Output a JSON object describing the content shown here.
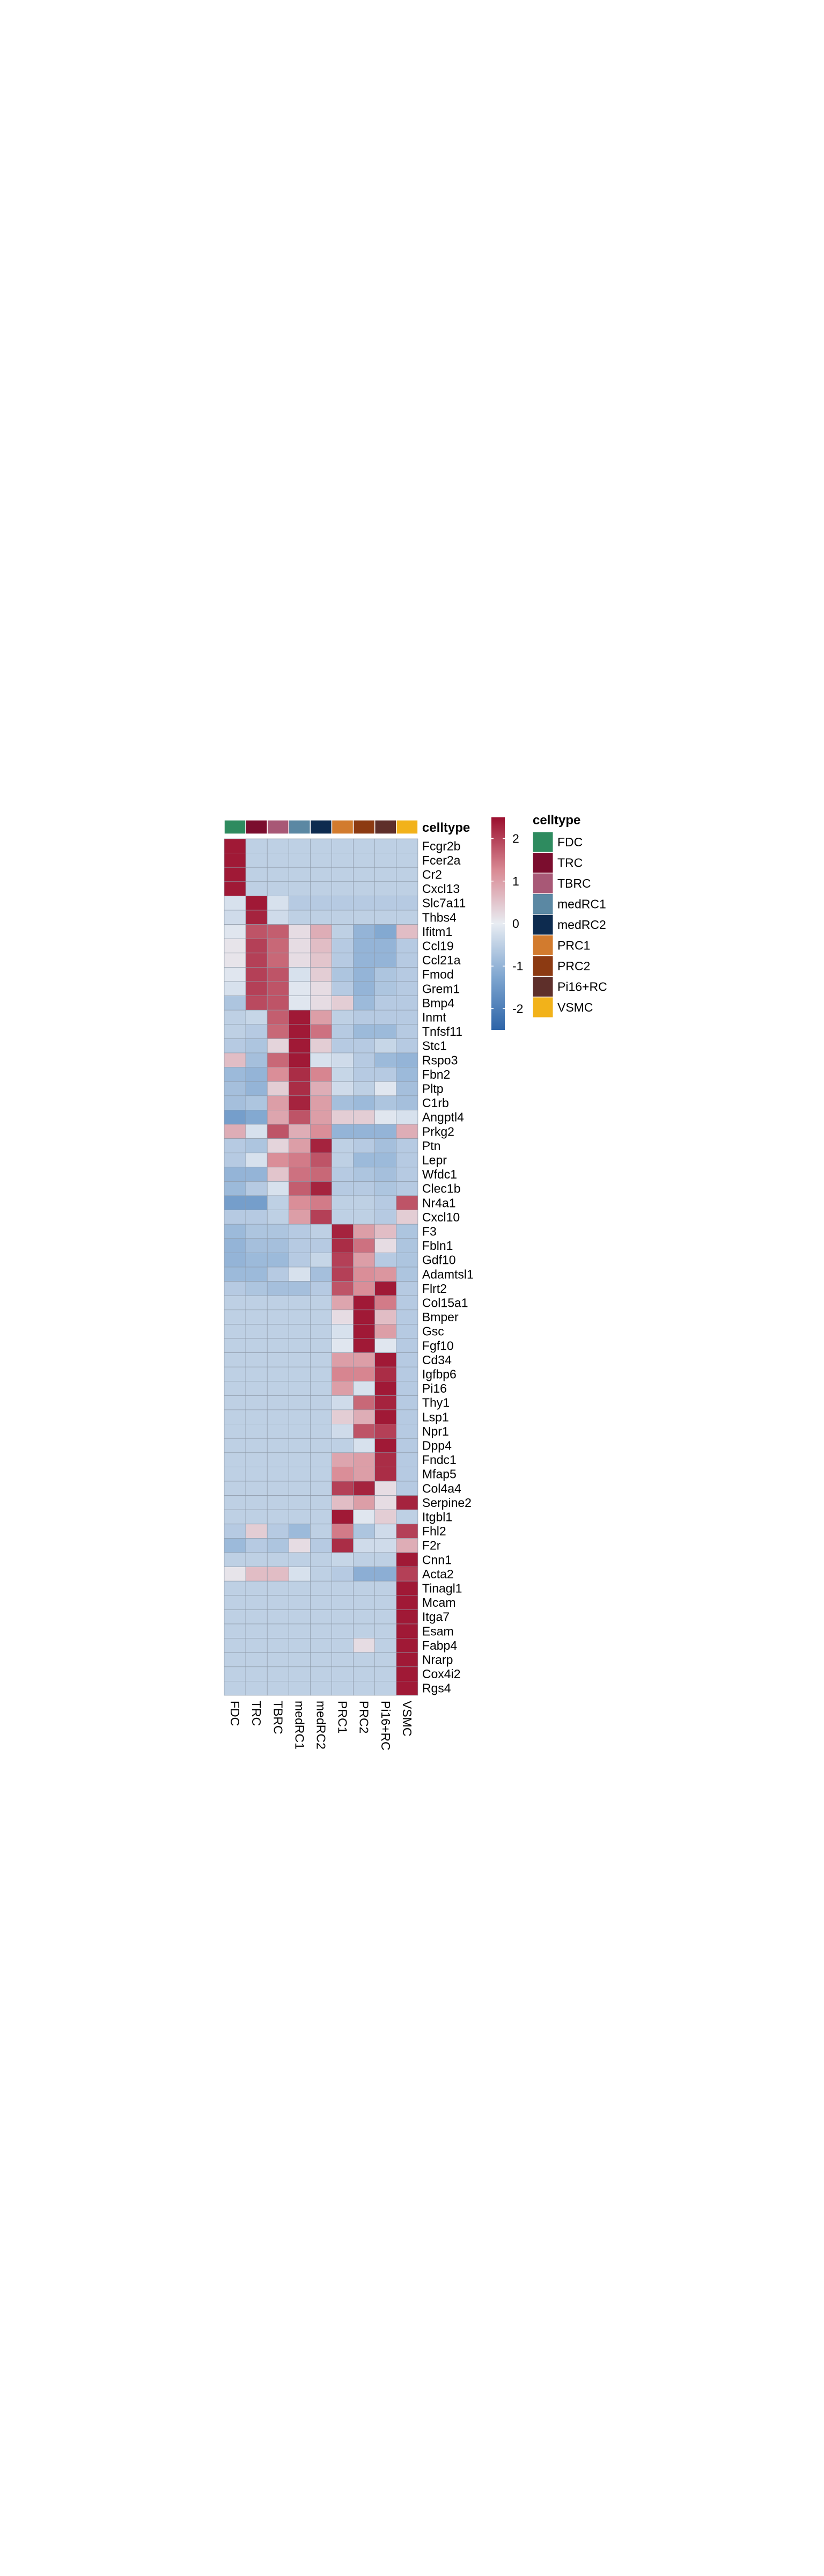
{
  "chart_data": {
    "type": "heatmap",
    "title": "",
    "xlabel": "",
    "ylabel": "",
    "celltypes": [
      "FDC",
      "TRC",
      "TBRC",
      "medRC1",
      "medRC2",
      "PRC1",
      "PRC2",
      "Pi16+RC",
      "VSMC"
    ],
    "annotation_title": "celltype",
    "annotation_colors": [
      "#2E8B5F",
      "#7B0D2E",
      "#A85876",
      "#5B88A3",
      "#0D2B4F",
      "#D27B2E",
      "#8C3A12",
      "#5E2F2A",
      "#F2B21A"
    ],
    "colorbar": {
      "ticks": [
        2,
        1,
        0,
        -1,
        -2
      ],
      "tick_labels": [
        "2",
        "1",
        "0",
        "-1",
        "-2"
      ],
      "range": [
        -2.5,
        2.5
      ],
      "colors": [
        "#2D64A8",
        "#7FA6D0",
        "#E8ECF2",
        "#D98A94",
        "#9B0F2E"
      ]
    },
    "genes": [
      "Fcgr2b",
      "Fcer2a",
      "Cr2",
      "Cxcl13",
      "Slc7a11",
      "Thbs4",
      "Ifitm1",
      "Ccl19",
      "Ccl21a",
      "Fmod",
      "Grem1",
      "Bmp4",
      "Inmt",
      "Tnfsf11",
      "Stc1",
      "Rspo3",
      "Fbn2",
      "Pltp",
      "C1rb",
      "Angptl4",
      "Prkg2",
      "Ptn",
      "Lepr",
      "Wfdc1",
      "Clec1b",
      "Nr4a1",
      "Cxcl10",
      "F3",
      "Fbln1",
      "Gdf10",
      "Adamtsl1",
      "Flrt2",
      "Col15a1",
      "Bmper",
      "Gsc",
      "Fgf10",
      "Cd34",
      "Igfbp6",
      "Pi16",
      "Thy1",
      "Lsp1",
      "Npr1",
      "Dpp4",
      "Fndc1",
      "Mfap5",
      "Col4a4",
      "Serpine2",
      "Itgbl1",
      "Fhl2",
      "F2r",
      "Cnn1",
      "Acta2",
      "Tinagl1",
      "Mcam",
      "Itga7",
      "Esam",
      "Fabp4",
      "Nrarp",
      "Cox4i2",
      "Rgs4"
    ],
    "values": [
      [
        2.4,
        -0.5,
        -0.5,
        -0.5,
        -0.5,
        -0.5,
        -0.5,
        -0.5,
        -0.5
      ],
      [
        2.4,
        -0.5,
        -0.5,
        -0.5,
        -0.5,
        -0.5,
        -0.5,
        -0.5,
        -0.5
      ],
      [
        2.4,
        -0.5,
        -0.5,
        -0.5,
        -0.5,
        -0.5,
        -0.5,
        -0.5,
        -0.5
      ],
      [
        2.4,
        -0.5,
        -0.5,
        -0.5,
        -0.5,
        -0.5,
        -0.5,
        -0.5,
        -0.5
      ],
      [
        -0.2,
        2.4,
        -0.2,
        -0.6,
        -0.6,
        -0.6,
        -0.6,
        -0.6,
        -0.6
      ],
      [
        -0.3,
        2.3,
        -0.3,
        -0.5,
        -0.5,
        -0.5,
        -0.5,
        -0.5,
        -0.5
      ],
      [
        -0.1,
        1.8,
        1.7,
        0.2,
        0.8,
        -0.5,
        -1.0,
        -1.2,
        0.6
      ],
      [
        0.1,
        2.0,
        1.6,
        0.2,
        0.6,
        -0.6,
        -1.0,
        -1.0,
        -0.6
      ],
      [
        0.1,
        2.0,
        1.6,
        0.2,
        0.5,
        -0.6,
        -1.0,
        -1.0,
        -0.6
      ],
      [
        -0.1,
        2.0,
        1.8,
        -0.2,
        0.4,
        -0.7,
        -1.0,
        -0.7,
        -0.6
      ],
      [
        -0.2,
        2.0,
        1.8,
        -0.1,
        0.2,
        -0.6,
        -1.0,
        -0.7,
        -0.6
      ],
      [
        -0.7,
        1.9,
        1.8,
        -0.1,
        0.2,
        0.4,
        -0.9,
        -0.6,
        -0.6
      ],
      [
        -0.5,
        -0.4,
        1.7,
        2.4,
        1.0,
        -0.5,
        -0.6,
        -0.6,
        -0.6
      ],
      [
        -0.5,
        -0.6,
        1.6,
        2.4,
        1.5,
        -0.6,
        -0.9,
        -0.9,
        -0.6
      ],
      [
        -0.6,
        -0.7,
        0.3,
        2.4,
        0.4,
        -0.6,
        -0.6,
        -0.4,
        -0.6
      ],
      [
        0.6,
        -0.8,
        1.6,
        2.4,
        -0.2,
        -0.3,
        -0.6,
        -0.9,
        -1.0
      ],
      [
        -0.9,
        -1.0,
        1.2,
        2.2,
        1.3,
        -0.4,
        -0.6,
        -0.6,
        -0.9
      ],
      [
        -0.8,
        -1.0,
        0.4,
        2.2,
        0.8,
        -0.3,
        -0.5,
        -0.1,
        -0.8
      ],
      [
        -0.8,
        -0.7,
        1.0,
        2.3,
        1.0,
        -0.8,
        -0.9,
        -0.7,
        -0.8
      ],
      [
        -1.4,
        -1.2,
        0.9,
        1.8,
        1.0,
        0.4,
        0.4,
        -0.1,
        -0.2
      ],
      [
        0.8,
        -0.2,
        1.8,
        0.8,
        1.2,
        -1.0,
        -1.0,
        -1.0,
        0.8
      ],
      [
        -0.6,
        -0.7,
        0.3,
        1.0,
        2.3,
        -0.5,
        -0.6,
        -0.8,
        -0.6
      ],
      [
        -0.6,
        -0.2,
        1.2,
        1.4,
        1.8,
        -0.5,
        -0.9,
        -0.9,
        -0.6
      ],
      [
        -1.0,
        -1.0,
        0.5,
        1.5,
        1.6,
        -0.6,
        -0.7,
        -0.8,
        -0.6
      ],
      [
        -0.9,
        -0.6,
        -0.2,
        1.7,
        2.3,
        -0.6,
        -0.6,
        -0.7,
        -0.6
      ],
      [
        -1.4,
        -1.4,
        -0.5,
        1.2,
        1.4,
        -0.5,
        -0.5,
        -0.6,
        1.8
      ],
      [
        -0.6,
        -0.6,
        -0.5,
        1.0,
        2.0,
        -0.5,
        -0.5,
        -0.6,
        0.4
      ],
      [
        -0.9,
        -0.7,
        -0.7,
        -0.6,
        -0.5,
        2.3,
        1.0,
        0.6,
        -0.7
      ],
      [
        -1.0,
        -0.8,
        -0.8,
        -0.6,
        -0.6,
        2.2,
        1.5,
        0.2,
        -0.7
      ],
      [
        -1.0,
        -0.9,
        -0.9,
        -0.6,
        -0.4,
        2.0,
        1.0,
        -0.6,
        -0.7
      ],
      [
        -0.9,
        -0.9,
        -0.6,
        -0.2,
        -0.8,
        2.0,
        1.2,
        1.1,
        -0.7
      ],
      [
        -0.6,
        -0.7,
        -0.8,
        -0.8,
        -0.6,
        1.8,
        1.2,
        2.4,
        -0.6
      ],
      [
        -0.5,
        -0.5,
        -0.5,
        -0.5,
        -0.5,
        0.9,
        2.4,
        1.4,
        -0.6
      ],
      [
        -0.5,
        -0.5,
        -0.5,
        -0.5,
        -0.5,
        0.2,
        2.4,
        0.6,
        -0.6
      ],
      [
        -0.5,
        -0.5,
        -0.5,
        -0.5,
        -0.5,
        -0.2,
        2.4,
        1.0,
        -0.6
      ],
      [
        -0.5,
        -0.5,
        -0.5,
        -0.5,
        -0.5,
        -0.1,
        2.4,
        -0.1,
        -0.6
      ],
      [
        -0.5,
        -0.5,
        -0.5,
        -0.5,
        -0.5,
        1.0,
        1.0,
        2.4,
        -0.6
      ],
      [
        -0.5,
        -0.5,
        -0.5,
        -0.5,
        -0.5,
        1.3,
        1.3,
        2.2,
        -0.6
      ],
      [
        -0.5,
        -0.5,
        -0.5,
        -0.5,
        -0.5,
        1.0,
        -0.2,
        2.4,
        -0.6
      ],
      [
        -0.5,
        -0.5,
        -0.5,
        -0.5,
        -0.5,
        -0.3,
        1.6,
        2.3,
        -0.6
      ],
      [
        -0.5,
        -0.5,
        -0.5,
        -0.5,
        -0.5,
        0.4,
        0.8,
        2.4,
        -0.6
      ],
      [
        -0.5,
        -0.5,
        -0.5,
        -0.5,
        -0.5,
        -0.3,
        1.8,
        2.0,
        -0.6
      ],
      [
        -0.5,
        -0.5,
        -0.5,
        -0.5,
        -0.5,
        -0.5,
        -0.2,
        2.4,
        -0.6
      ],
      [
        -0.5,
        -0.5,
        -0.5,
        -0.5,
        -0.5,
        0.9,
        1.0,
        2.2,
        -0.6
      ],
      [
        -0.5,
        -0.5,
        -0.5,
        -0.5,
        -0.5,
        1.2,
        1.0,
        2.2,
        -0.6
      ],
      [
        -0.5,
        -0.5,
        -0.5,
        -0.5,
        -0.5,
        2.0,
        2.3,
        0.2,
        -0.6
      ],
      [
        -0.5,
        -0.5,
        -0.5,
        -0.5,
        -0.5,
        0.6,
        1.0,
        0.2,
        2.3
      ],
      [
        -0.5,
        -0.5,
        -0.5,
        -0.5,
        -0.5,
        2.4,
        -0.1,
        0.4,
        -0.5
      ],
      [
        -0.6,
        0.4,
        -0.6,
        -0.9,
        -0.5,
        1.4,
        -0.7,
        -0.3,
        2.0
      ],
      [
        -0.9,
        -0.6,
        -0.7,
        0.2,
        -0.6,
        2.2,
        -0.3,
        -0.3,
        0.8
      ],
      [
        -0.5,
        -0.5,
        -0.5,
        -0.5,
        -0.5,
        -0.4,
        -0.5,
        -0.5,
        2.4
      ],
      [
        0.1,
        0.6,
        0.6,
        -0.2,
        -0.5,
        -0.6,
        -1.1,
        -1.1,
        2.0
      ],
      [
        -0.5,
        -0.5,
        -0.5,
        -0.5,
        -0.5,
        -0.5,
        -0.5,
        -0.5,
        2.4
      ],
      [
        -0.5,
        -0.5,
        -0.5,
        -0.5,
        -0.5,
        -0.5,
        -0.5,
        -0.5,
        2.4
      ],
      [
        -0.5,
        -0.5,
        -0.5,
        -0.5,
        -0.5,
        -0.5,
        -0.5,
        -0.5,
        2.4
      ],
      [
        -0.5,
        -0.5,
        -0.5,
        -0.5,
        -0.5,
        -0.5,
        -0.5,
        -0.5,
        2.4
      ],
      [
        -0.5,
        -0.5,
        -0.5,
        -0.5,
        -0.5,
        -0.5,
        0.2,
        -0.5,
        2.4
      ],
      [
        -0.5,
        -0.5,
        -0.5,
        -0.5,
        -0.5,
        -0.5,
        -0.5,
        -0.5,
        2.4
      ],
      [
        -0.5,
        -0.5,
        -0.5,
        -0.5,
        -0.5,
        -0.5,
        -0.5,
        -0.5,
        2.4
      ],
      [
        -0.5,
        -0.5,
        -0.5,
        -0.5,
        -0.5,
        -0.5,
        -0.5,
        -0.5,
        2.4
      ]
    ],
    "legend": {
      "title": "celltype",
      "placement": "right"
    }
  }
}
